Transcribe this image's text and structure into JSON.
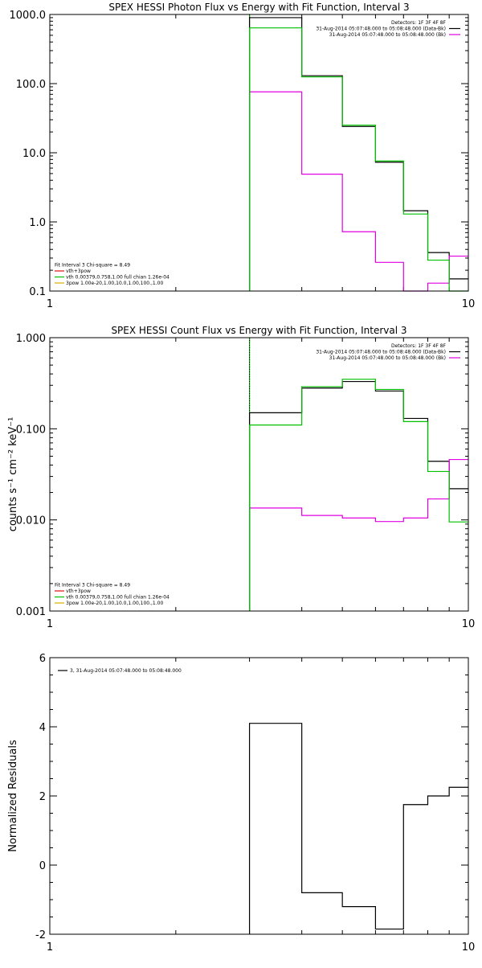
{
  "chart_data": [
    {
      "type": "line",
      "title": "SPEX HESSI Photon Flux vs Energy with Fit Function, Interval 3",
      "xlabel": "",
      "ylabel": "",
      "xscale": "log",
      "yscale": "log",
      "xlim": [
        1,
        10
      ],
      "ylim": [
        0.1,
        1000
      ],
      "xticks": [
        {
          "v": 1,
          "label": "1"
        },
        {
          "v": 10,
          "label": "10"
        }
      ],
      "yticks": [
        {
          "v": 0.1,
          "label": "0.1"
        },
        {
          "v": 1,
          "label": "1.0"
        },
        {
          "v": 10,
          "label": "10.0"
        },
        {
          "v": 100,
          "label": "100.0"
        },
        {
          "v": 1000,
          "label": "1000.0"
        }
      ],
      "vline": {
        "x": 3.0,
        "color": "#00a000"
      },
      "legend_tr": [
        {
          "text": "Detectors: 1F 3F 4F 8F",
          "color": ""
        },
        {
          "text": "31-Aug-2014 05:07:48.000 to 05:08:48.000 (Data-Bk)",
          "color": "#000000"
        },
        {
          "text": "31-Aug-2014 05:07:48.000 to 05:08:48.000 (Bk)",
          "color": "#e000e0"
        }
      ],
      "legend_bl": [
        {
          "text": "Fit Interval 3   Chi-square = 8.49",
          "color": ""
        },
        {
          "text": "vth+3pow",
          "color": "#e01010"
        },
        {
          "text": "vth 0.00379,0.758,1.00  full chian 1.26e-04",
          "color": "#00c000"
        },
        {
          "text": "3pow 1.00e-20,1.00,10.0,1.00,100.,1.00",
          "color": "#d8b000"
        }
      ],
      "bin_edges": [
        3.0,
        4.0,
        5.0,
        6.0,
        7.0,
        8.0,
        9.0,
        10.0
      ],
      "series": [
        {
          "name": "Data-Bk",
          "color": "#000000",
          "values": [
            900,
            130,
            24,
            7.3,
            1.45,
            0.36,
            0.15
          ]
        },
        {
          "name": "Bk",
          "color": "#e000e0",
          "values": [
            76,
            4.9,
            0.72,
            0.26,
            0.095,
            0.13,
            0.32
          ]
        },
        {
          "name": "vth+3pow",
          "color": "#00c000",
          "values": [
            640,
            125,
            25,
            7.6,
            1.3,
            0.28,
            0.05
          ]
        }
      ]
    },
    {
      "type": "line",
      "title": "SPEX HESSI Count Flux vs Energy with Fit Function, Interval 3",
      "xlabel": "",
      "ylabel": "counts s⁻¹ cm⁻² keV⁻¹",
      "xscale": "log",
      "yscale": "log",
      "xlim": [
        1,
        10
      ],
      "ylim": [
        0.001,
        1
      ],
      "xticks": [
        {
          "v": 1,
          "label": "1"
        },
        {
          "v": 10,
          "label": "10"
        }
      ],
      "yticks": [
        {
          "v": 0.001,
          "label": "0.001"
        },
        {
          "v": 0.01,
          "label": "0.010"
        },
        {
          "v": 0.1,
          "label": "0.100"
        },
        {
          "v": 1,
          "label": "1.000"
        }
      ],
      "vline": {
        "x": 3.0,
        "color": "#00a000"
      },
      "legend_tr": [
        {
          "text": "Detectors: 1F 3F 4F 8F",
          "color": ""
        },
        {
          "text": "31-Aug-2014 05:07:48.000 to 05:08:48.000 (Data-Bk)",
          "color": "#000000"
        },
        {
          "text": "31-Aug-2014 05:07:48.000 to 05:08:48.000 (Bk)",
          "color": "#e000e0"
        }
      ],
      "legend_bl": [
        {
          "text": "Fit Interval 3   Chi-square = 8.49",
          "color": ""
        },
        {
          "text": "vth+3pow",
          "color": "#e01010"
        },
        {
          "text": "vth 0.00379,0.758,1.00  full chian 1.26e-04",
          "color": "#00c000"
        },
        {
          "text": "3pow 1.00e-20,1.00,10.0,1.00,100.,1.00",
          "color": "#d8b000"
        }
      ],
      "bin_edges": [
        3.0,
        4.0,
        5.0,
        6.0,
        7.0,
        8.0,
        9.0,
        10.0
      ],
      "series": [
        {
          "name": "Data-Bk",
          "color": "#000000",
          "values": [
            0.15,
            0.28,
            0.33,
            0.26,
            0.13,
            0.044,
            0.022
          ]
        },
        {
          "name": "Bk",
          "color": "#e000e0",
          "values": [
            0.0135,
            0.0112,
            0.0105,
            0.0096,
            0.0105,
            0.017,
            0.046
          ]
        },
        {
          "name": "vth+3pow",
          "color": "#00c000",
          "values": [
            0.11,
            0.29,
            0.35,
            0.27,
            0.12,
            0.034,
            0.0095
          ]
        }
      ]
    },
    {
      "type": "line",
      "title": "",
      "xlabel": "",
      "ylabel": "Normalized Residuals",
      "xscale": "log",
      "yscale": "linear",
      "xlim": [
        1,
        10
      ],
      "ylim": [
        -2,
        6
      ],
      "xticks": [
        {
          "v": 1,
          "label": "1"
        },
        {
          "v": 10,
          "label": "10"
        }
      ],
      "yticks": [
        {
          "v": -2,
          "label": "-2"
        },
        {
          "v": 0,
          "label": "0"
        },
        {
          "v": 2,
          "label": "2"
        },
        {
          "v": 4,
          "label": "4"
        },
        {
          "v": 6,
          "label": "6"
        }
      ],
      "vline": null,
      "legend_tr": [],
      "legend_bl": [],
      "legend_tl": [
        {
          "text": "3, 31-Aug-2014 05:07:48.000 to 05:08:48.000",
          "color": "#000000"
        }
      ],
      "bin_edges": [
        3.0,
        4.0,
        5.0,
        6.0,
        7.0,
        8.0,
        9.0,
        10.0
      ],
      "series": [
        {
          "name": "",
          "color": "#000000",
          "values": [
            4.1,
            -0.8,
            -1.2,
            -1.85,
            1.75,
            2.0,
            2.25
          ]
        }
      ]
    }
  ]
}
